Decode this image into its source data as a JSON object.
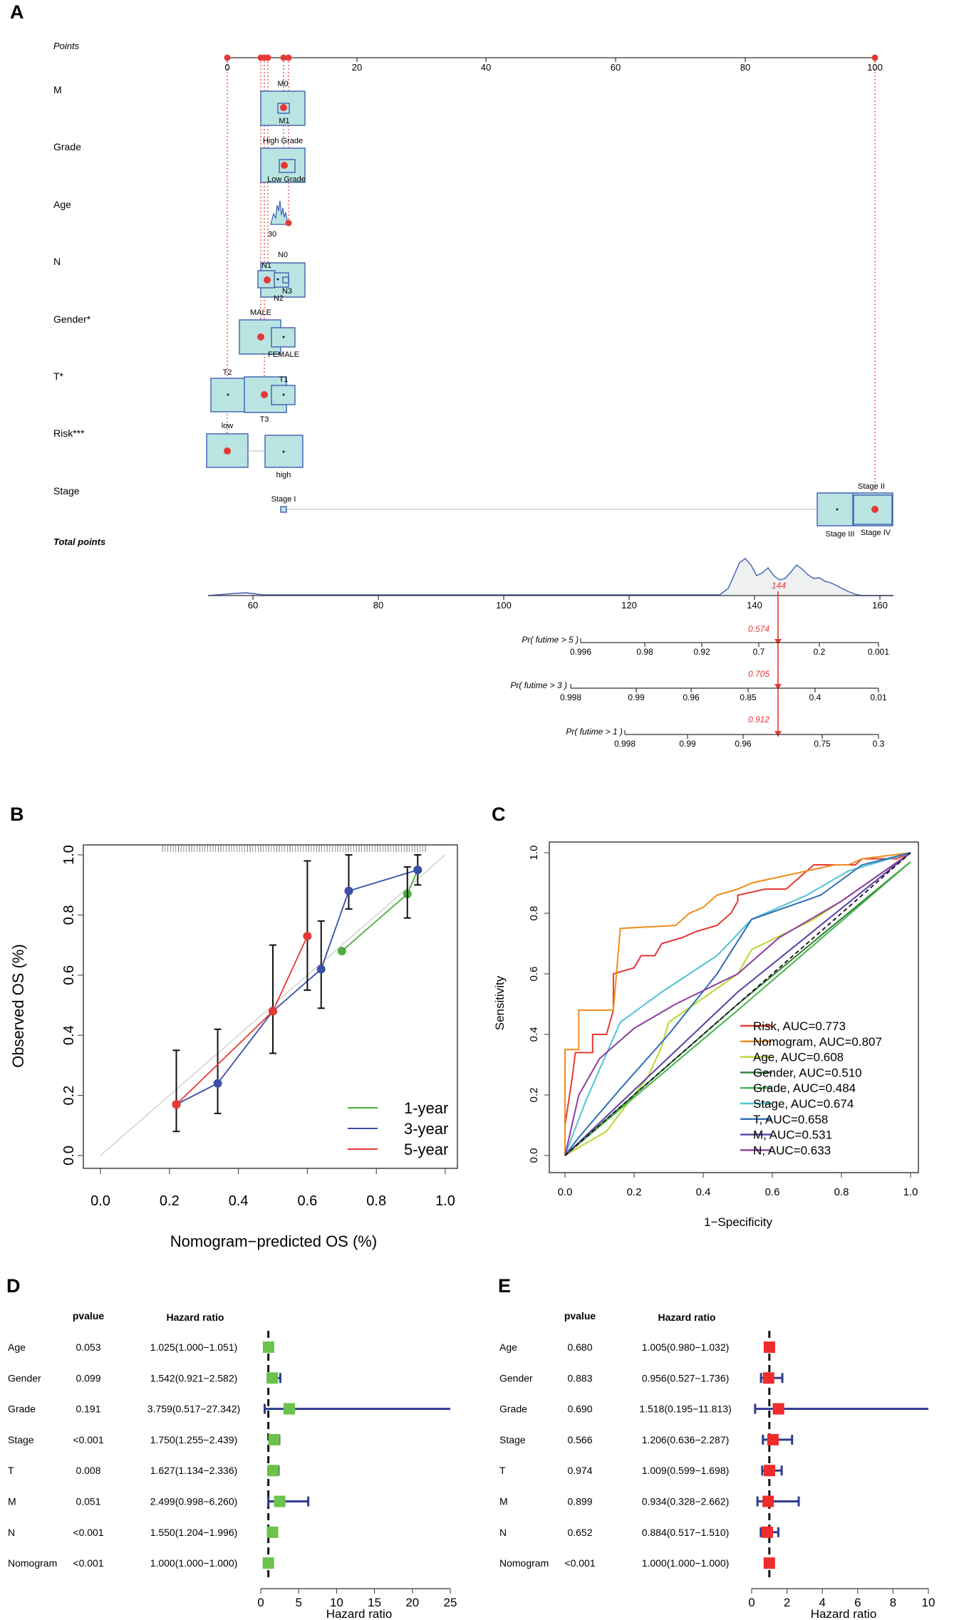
{
  "panel_labels": {
    "a": "A",
    "b": "B",
    "c": "C",
    "d": "D",
    "e": "E"
  },
  "nomogram": {
    "points_label": "Points",
    "points_ticks": [
      "0",
      "20",
      "40",
      "60",
      "80",
      "100"
    ],
    "rows": [
      {
        "label": "M",
        "levels": [
          "M0",
          "M1"
        ]
      },
      {
        "label": "Grade",
        "levels": [
          "High Grade",
          "Low Grade"
        ]
      },
      {
        "label": "Age",
        "levels": [
          "30"
        ]
      },
      {
        "label": "N",
        "levels": [
          "N0",
          "N1",
          "N3",
          "N2"
        ]
      },
      {
        "label": "Gender*",
        "levels": [
          "MALE",
          "FEMALE"
        ]
      },
      {
        "label": "T*",
        "levels": [
          "T2",
          "T1",
          "T3"
        ]
      },
      {
        "label": "Risk***",
        "levels": [
          "low",
          "high"
        ]
      },
      {
        "label": "Stage",
        "levels": [
          "Stage I",
          "Stage II",
          "Stage III",
          "Stage IV"
        ]
      }
    ],
    "total_points_label": "Total points",
    "total_ticks": [
      "60",
      "80",
      "100",
      "120",
      "140",
      "160"
    ],
    "total_value": "144",
    "prob_scales": [
      {
        "label": "Pr( futime > 5 )",
        "ticks": [
          "0.996",
          "0.98",
          "0.92",
          "0.7",
          "0.2",
          "0.001"
        ],
        "value": "0.574"
      },
      {
        "label": "Pr( futime > 3 )",
        "ticks": [
          "0.998",
          "0.99",
          "0.96",
          "0.85",
          "0.4",
          "0.01"
        ],
        "value": "0.705"
      },
      {
        "label": "Pr( futime > 1 )",
        "ticks": [
          "0.998",
          "0.99",
          "0.96",
          "0.75",
          "0.3"
        ],
        "value": "0.912"
      }
    ]
  },
  "chart_data": [
    {
      "type": "line",
      "panel": "B",
      "title": "",
      "xlabel": "Nomogram−predicted OS (%)",
      "ylabel": "Observed OS (%)",
      "xlim": [
        0,
        1
      ],
      "ylim": [
        0,
        1
      ],
      "xticks": [
        "0.0",
        "0.2",
        "0.4",
        "0.6",
        "0.8",
        "1.0"
      ],
      "yticks": [
        "0.0",
        "0.2",
        "0.4",
        "0.6",
        "0.8",
        "1.0"
      ],
      "series": [
        {
          "name": "1-year",
          "color": "#4caf3c",
          "points": [
            [
              0.7,
              0.68
            ],
            [
              0.89,
              0.87
            ],
            [
              0.92,
              0.95
            ]
          ]
        },
        {
          "name": "3-year",
          "color": "#3a4fa8",
          "points": [
            [
              0.22,
              0.17
            ],
            [
              0.34,
              0.24
            ],
            [
              0.5,
              0.48
            ],
            [
              0.64,
              0.62
            ],
            [
              0.72,
              0.88
            ],
            [
              0.92,
              0.95
            ]
          ],
          "error": [
            [
              0.22,
              0.08,
              0.35
            ],
            [
              0.34,
              0.14,
              0.42
            ],
            [
              0.64,
              0.49,
              0.78
            ],
            [
              0.72,
              0.82,
              1.0
            ],
            [
              0.89,
              0.79,
              0.96
            ],
            [
              0.92,
              0.9,
              1.0
            ]
          ]
        },
        {
          "name": "5-year",
          "color": "#e53935",
          "points": [
            [
              0.22,
              0.17
            ],
            [
              0.5,
              0.48
            ],
            [
              0.6,
              0.73
            ]
          ],
          "error": [
            [
              0.5,
              0.34,
              0.7
            ],
            [
              0.6,
              0.55,
              0.98
            ]
          ]
        }
      ]
    },
    {
      "type": "line",
      "panel": "C",
      "xlabel": "1−Specificity",
      "ylabel": "Sensitivity",
      "xlim": [
        0,
        1
      ],
      "ylim": [
        0,
        1
      ],
      "xticks": [
        "0.0",
        "0.2",
        "0.4",
        "0.6",
        "0.8",
        "1.0"
      ],
      "yticks": [
        "0.0",
        "0.2",
        "0.4",
        "0.6",
        "0.8",
        "1.0"
      ],
      "series": [
        {
          "name": "Risk, AUC=0.773",
          "color": "#e53935",
          "points": [
            [
              0,
              0
            ],
            [
              0,
              0.1
            ],
            [
              0.02,
              0.25
            ],
            [
              0.03,
              0.34
            ],
            [
              0.08,
              0.34
            ],
            [
              0.08,
              0.4
            ],
            [
              0.12,
              0.4
            ],
            [
              0.14,
              0.48
            ],
            [
              0.14,
              0.6
            ],
            [
              0.2,
              0.62
            ],
            [
              0.22,
              0.66
            ],
            [
              0.26,
              0.66
            ],
            [
              0.28,
              0.7
            ],
            [
              0.34,
              0.72
            ],
            [
              0.38,
              0.74
            ],
            [
              0.44,
              0.76
            ],
            [
              0.48,
              0.8
            ],
            [
              0.5,
              0.84
            ],
            [
              0.5,
              0.86
            ],
            [
              0.58,
              0.88
            ],
            [
              0.64,
              0.88
            ],
            [
              0.72,
              0.96
            ],
            [
              0.84,
              0.96
            ],
            [
              0.86,
              0.98
            ],
            [
              0.96,
              0.98
            ],
            [
              1,
              1
            ]
          ]
        },
        {
          "name": "Nomogram, AUC=0.807",
          "color": "#ef8c1a",
          "points": [
            [
              0,
              0
            ],
            [
              0,
              0.35
            ],
            [
              0.04,
              0.35
            ],
            [
              0.04,
              0.48
            ],
            [
              0.14,
              0.48
            ],
            [
              0.16,
              0.75
            ],
            [
              0.32,
              0.76
            ],
            [
              0.36,
              0.8
            ],
            [
              0.4,
              0.82
            ],
            [
              0.44,
              0.86
            ],
            [
              0.5,
              0.88
            ],
            [
              0.54,
              0.9
            ],
            [
              0.62,
              0.92
            ],
            [
              0.78,
              0.96
            ],
            [
              0.82,
              0.96
            ],
            [
              0.86,
              0.98
            ],
            [
              1,
              1
            ]
          ]
        },
        {
          "name": "Age, AUC=0.608",
          "color": "#bcd630",
          "points": [
            [
              0,
              0
            ],
            [
              0.12,
              0.08
            ],
            [
              0.24,
              0.26
            ],
            [
              0.28,
              0.36
            ],
            [
              0.3,
              0.44
            ],
            [
              0.4,
              0.52
            ],
            [
              0.5,
              0.6
            ],
            [
              0.54,
              0.68
            ],
            [
              0.72,
              0.78
            ],
            [
              0.8,
              0.84
            ],
            [
              0.9,
              0.92
            ],
            [
              1,
              1
            ]
          ]
        },
        {
          "name": "Gender, AUC=0.510",
          "color": "#2e7d32",
          "points": [
            [
              0,
              0
            ],
            [
              0.5,
              0.5
            ],
            [
              1,
              0.97
            ]
          ]
        },
        {
          "name": "Grade, AUC=0.484",
          "color": "#43b649",
          "points": [
            [
              0,
              0
            ],
            [
              0.5,
              0.48
            ],
            [
              1,
              0.97
            ]
          ]
        },
        {
          "name": "Stage, AUC=0.674",
          "color": "#4fc3d4",
          "points": [
            [
              0,
              0
            ],
            [
              0.06,
              0.18
            ],
            [
              0.16,
              0.44
            ],
            [
              0.28,
              0.54
            ],
            [
              0.44,
              0.66
            ],
            [
              0.54,
              0.78
            ],
            [
              0.7,
              0.86
            ],
            [
              0.82,
              0.94
            ],
            [
              1,
              1
            ]
          ]
        },
        {
          "name": "T, AUC=0.658",
          "color": "#2f6db5",
          "points": [
            [
              0,
              0
            ],
            [
              0.04,
              0.06
            ],
            [
              0.16,
              0.22
            ],
            [
              0.3,
              0.4
            ],
            [
              0.44,
              0.6
            ],
            [
              0.54,
              0.78
            ],
            [
              0.74,
              0.86
            ],
            [
              0.86,
              0.96
            ],
            [
              1,
              1
            ]
          ]
        },
        {
          "name": "M, AUC=0.531",
          "color": "#5a3fa8",
          "points": [
            [
              0,
              0
            ],
            [
              0.5,
              0.54
            ],
            [
              1,
              1
            ]
          ]
        },
        {
          "name": "N, AUC=0.633",
          "color": "#8e3ea0",
          "points": [
            [
              0,
              0
            ],
            [
              0.04,
              0.2
            ],
            [
              0.1,
              0.32
            ],
            [
              0.2,
              0.42
            ],
            [
              0.32,
              0.5
            ],
            [
              0.5,
              0.6
            ],
            [
              0.62,
              0.72
            ],
            [
              0.8,
              0.84
            ],
            [
              1,
              1
            ]
          ]
        }
      ]
    },
    {
      "type": "forest",
      "panel": "D",
      "headers": {
        "pvalue": "pvalue",
        "hr": "Hazard ratio"
      },
      "xlabel": "Hazard ratio",
      "xlim": [
        0,
        25
      ],
      "xticks": [
        "0",
        "5",
        "10",
        "15",
        "20",
        "25"
      ],
      "marker_color": "#6cc24a",
      "rows": [
        {
          "name": "Age",
          "pvalue": "0.053",
          "hr_text": "1.025(1.000−1.051)",
          "hr": 1.025,
          "lo": 1.0,
          "hi": 1.051
        },
        {
          "name": "Gender",
          "pvalue": "0.099",
          "hr_text": "1.542(0.921−2.582)",
          "hr": 1.542,
          "lo": 0.921,
          "hi": 2.582
        },
        {
          "name": "Grade",
          "pvalue": "0.191",
          "hr_text": "3.759(0.517−27.342)",
          "hr": 3.759,
          "lo": 0.517,
          "hi": 27.342
        },
        {
          "name": "Stage",
          "pvalue": "<0.001",
          "hr_text": "1.750(1.255−2.439)",
          "hr": 1.75,
          "lo": 1.255,
          "hi": 2.439
        },
        {
          "name": "T",
          "pvalue": "0.008",
          "hr_text": "1.627(1.134−2.336)",
          "hr": 1.627,
          "lo": 1.134,
          "hi": 2.336
        },
        {
          "name": "M",
          "pvalue": "0.051",
          "hr_text": "2.499(0.998−6.260)",
          "hr": 2.499,
          "lo": 0.998,
          "hi": 6.26
        },
        {
          "name": "N",
          "pvalue": "<0.001",
          "hr_text": "1.550(1.204−1.996)",
          "hr": 1.55,
          "lo": 1.204,
          "hi": 1.996
        },
        {
          "name": "Nomogram",
          "pvalue": "<0.001",
          "hr_text": "1.000(1.000−1.000)",
          "hr": 1.0,
          "lo": 1.0,
          "hi": 1.0
        }
      ]
    },
    {
      "type": "forest",
      "panel": "E",
      "headers": {
        "pvalue": "pvalue",
        "hr": "Hazard ratio"
      },
      "xlabel": "Hazard ratio",
      "xlim": [
        0,
        10
      ],
      "xticks": [
        "0",
        "2",
        "4",
        "6",
        "8",
        "10"
      ],
      "marker_color": "#ef2b2b",
      "rows": [
        {
          "name": "Age",
          "pvalue": "0.680",
          "hr_text": "1.005(0.980−1.032)",
          "hr": 1.005,
          "lo": 0.98,
          "hi": 1.032
        },
        {
          "name": "Gender",
          "pvalue": "0.883",
          "hr_text": "0.956(0.527−1.736)",
          "hr": 0.956,
          "lo": 0.527,
          "hi": 1.736
        },
        {
          "name": "Grade",
          "pvalue": "0.690",
          "hr_text": "1.518(0.195−11.813)",
          "hr": 1.518,
          "lo": 0.195,
          "hi": 11.813
        },
        {
          "name": "Stage",
          "pvalue": "0.566",
          "hr_text": "1.206(0.636−2.287)",
          "hr": 1.206,
          "lo": 0.636,
          "hi": 2.287
        },
        {
          "name": "T",
          "pvalue": "0.974",
          "hr_text": "1.009(0.599−1.698)",
          "hr": 1.009,
          "lo": 0.599,
          "hi": 1.698
        },
        {
          "name": "M",
          "pvalue": "0.899",
          "hr_text": "0.934(0.328−2.662)",
          "hr": 0.934,
          "lo": 0.328,
          "hi": 2.662
        },
        {
          "name": "N",
          "pvalue": "0.652",
          "hr_text": "0.884(0.517−1.510)",
          "hr": 0.884,
          "lo": 0.517,
          "hi": 1.51
        },
        {
          "name": "Nomogram",
          "pvalue": "<0.001",
          "hr_text": "1.000(1.000−1.000)",
          "hr": 1.0,
          "lo": 1.0,
          "hi": 1.0
        }
      ]
    }
  ]
}
